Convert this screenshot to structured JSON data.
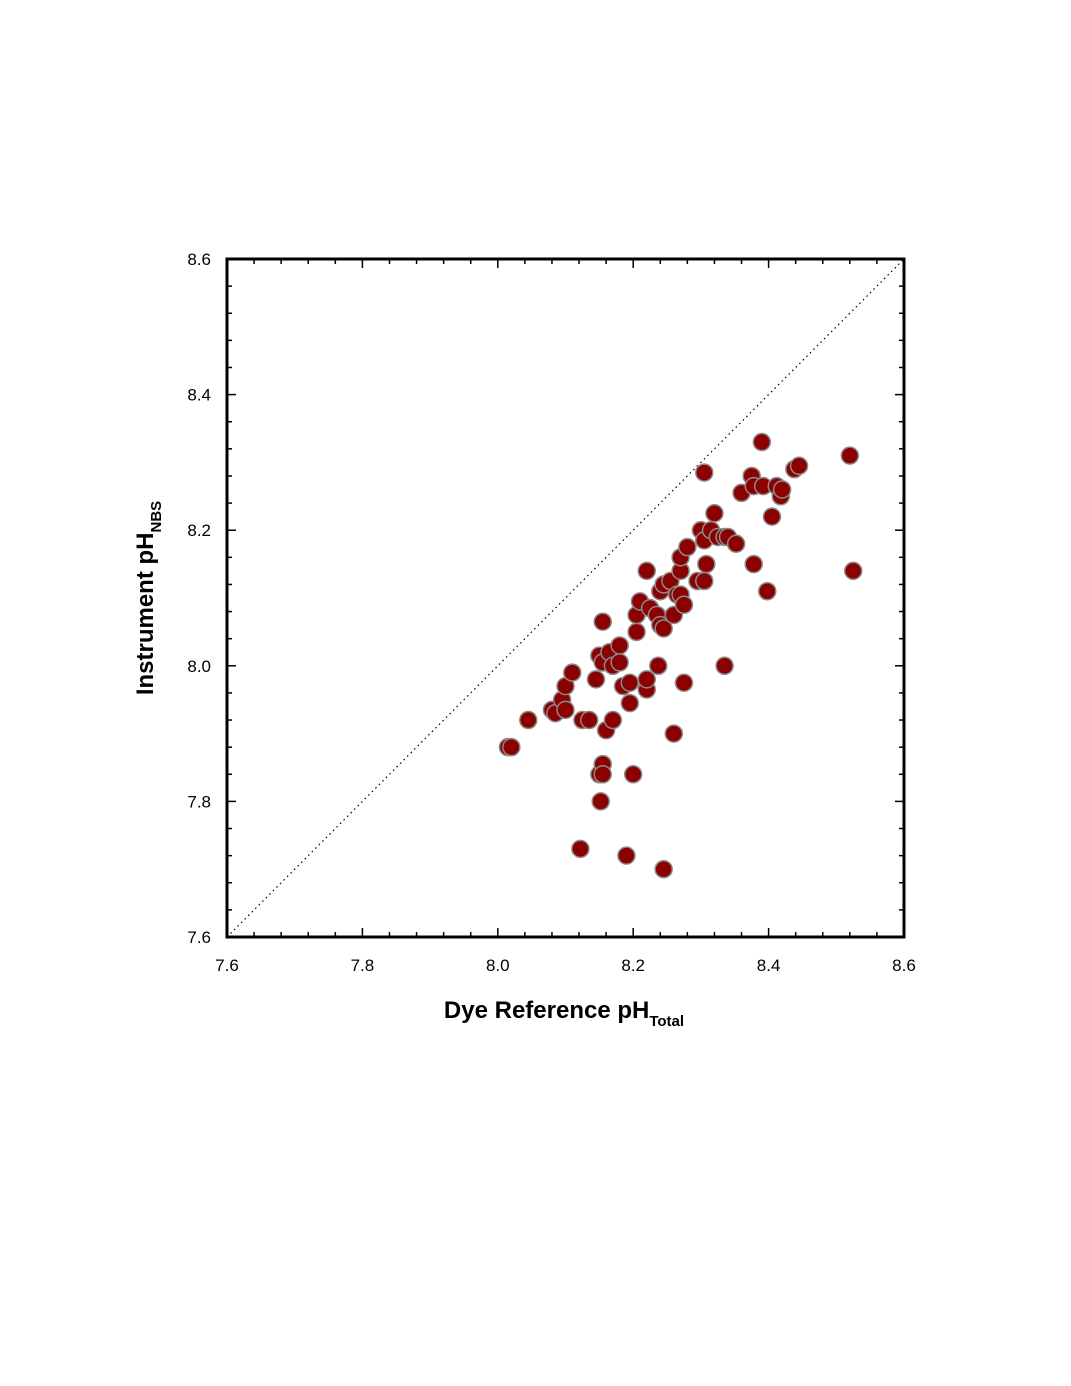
{
  "chart_data": {
    "type": "scatter",
    "title": "",
    "xlabel": {
      "main": "Dye Reference pH",
      "subscript": "Total"
    },
    "ylabel": {
      "main": "Instrument pH",
      "subscript": "NBS"
    },
    "xlim": [
      7.6,
      8.6
    ],
    "ylim": [
      7.6,
      8.6
    ],
    "xticks": [
      "7.6",
      "7.8",
      "8.0",
      "8.2",
      "8.4",
      "8.6"
    ],
    "yticks": [
      "7.6",
      "7.8",
      "8.0",
      "8.2",
      "8.4",
      "8.6"
    ],
    "grid": false,
    "reference_line": {
      "style": "dotted",
      "from": [
        7.6,
        7.6
      ],
      "to": [
        8.6,
        8.6
      ]
    },
    "marker_color": "#8b0000",
    "marker_edge_color": "#8a8a8a",
    "points": [
      {
        "x": 8.015,
        "y": 7.88
      },
      {
        "x": 8.02,
        "y": 7.88
      },
      {
        "x": 8.045,
        "y": 7.92
      },
      {
        "x": 8.08,
        "y": 7.935
      },
      {
        "x": 8.085,
        "y": 7.93
      },
      {
        "x": 8.095,
        "y": 7.95
      },
      {
        "x": 8.1,
        "y": 7.97
      },
      {
        "x": 8.1,
        "y": 7.935
      },
      {
        "x": 8.11,
        "y": 7.99
      },
      {
        "x": 8.125,
        "y": 7.92
      },
      {
        "x": 8.135,
        "y": 7.92
      },
      {
        "x": 8.145,
        "y": 7.98
      },
      {
        "x": 8.15,
        "y": 8.015
      },
      {
        "x": 8.155,
        "y": 8.065
      },
      {
        "x": 8.155,
        "y": 8.005
      },
      {
        "x": 8.16,
        "y": 7.905
      },
      {
        "x": 8.165,
        "y": 8.02
      },
      {
        "x": 8.17,
        "y": 7.92
      },
      {
        "x": 8.17,
        "y": 8.0
      },
      {
        "x": 8.18,
        "y": 8.005
      },
      {
        "x": 8.18,
        "y": 8.03
      },
      {
        "x": 8.185,
        "y": 7.97
      },
      {
        "x": 8.195,
        "y": 7.945
      },
      {
        "x": 8.195,
        "y": 7.975
      },
      {
        "x": 8.15,
        "y": 7.84
      },
      {
        "x": 8.155,
        "y": 7.855
      },
      {
        "x": 8.155,
        "y": 7.84
      },
      {
        "x": 8.2,
        "y": 7.84
      },
      {
        "x": 8.152,
        "y": 7.8
      },
      {
        "x": 8.122,
        "y": 7.73
      },
      {
        "x": 8.19,
        "y": 7.72
      },
      {
        "x": 8.245,
        "y": 7.7
      },
      {
        "x": 8.26,
        "y": 7.9
      },
      {
        "x": 8.275,
        "y": 7.975
      },
      {
        "x": 8.22,
        "y": 7.965
      },
      {
        "x": 8.22,
        "y": 7.98
      },
      {
        "x": 8.237,
        "y": 8.0
      },
      {
        "x": 8.335,
        "y": 8.0
      },
      {
        "x": 8.205,
        "y": 8.05
      },
      {
        "x": 8.205,
        "y": 8.075
      },
      {
        "x": 8.21,
        "y": 8.095
      },
      {
        "x": 8.22,
        "y": 8.14
      },
      {
        "x": 8.225,
        "y": 8.085
      },
      {
        "x": 8.235,
        "y": 8.075
      },
      {
        "x": 8.24,
        "y": 8.06
      },
      {
        "x": 8.245,
        "y": 8.055
      },
      {
        "x": 8.24,
        "y": 8.11
      },
      {
        "x": 8.245,
        "y": 8.12
      },
      {
        "x": 8.255,
        "y": 8.125
      },
      {
        "x": 8.26,
        "y": 8.075
      },
      {
        "x": 8.265,
        "y": 8.105
      },
      {
        "x": 8.27,
        "y": 8.105
      },
      {
        "x": 8.275,
        "y": 8.09
      },
      {
        "x": 8.27,
        "y": 8.14
      },
      {
        "x": 8.27,
        "y": 8.16
      },
      {
        "x": 8.28,
        "y": 8.175
      },
      {
        "x": 8.295,
        "y": 8.125
      },
      {
        "x": 8.3,
        "y": 8.2
      },
      {
        "x": 8.305,
        "y": 8.185
      },
      {
        "x": 8.305,
        "y": 8.125
      },
      {
        "x": 8.308,
        "y": 8.15
      },
      {
        "x": 8.315,
        "y": 8.2
      },
      {
        "x": 8.32,
        "y": 8.225
      },
      {
        "x": 8.325,
        "y": 8.19
      },
      {
        "x": 8.335,
        "y": 8.19
      },
      {
        "x": 8.34,
        "y": 8.19
      },
      {
        "x": 8.352,
        "y": 8.18
      },
      {
        "x": 8.305,
        "y": 8.285
      },
      {
        "x": 8.36,
        "y": 8.255
      },
      {
        "x": 8.375,
        "y": 8.28
      },
      {
        "x": 8.378,
        "y": 8.265
      },
      {
        "x": 8.378,
        "y": 8.15
      },
      {
        "x": 8.392,
        "y": 8.265
      },
      {
        "x": 8.39,
        "y": 8.33
      },
      {
        "x": 8.398,
        "y": 8.11
      },
      {
        "x": 8.405,
        "y": 8.22
      },
      {
        "x": 8.412,
        "y": 8.265
      },
      {
        "x": 8.418,
        "y": 8.25
      },
      {
        "x": 8.42,
        "y": 8.26
      },
      {
        "x": 8.438,
        "y": 8.29
      },
      {
        "x": 8.445,
        "y": 8.295
      },
      {
        "x": 8.52,
        "y": 8.31
      },
      {
        "x": 8.525,
        "y": 8.14
      }
    ]
  }
}
